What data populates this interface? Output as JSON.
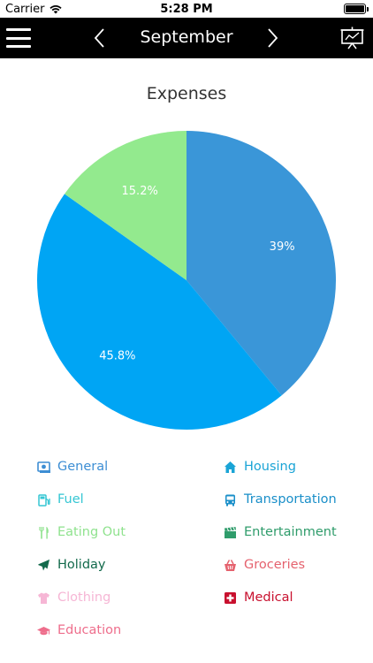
{
  "status_bar": {
    "carrier": "Carrier",
    "time": "5:28 PM"
  },
  "nav": {
    "title": "September"
  },
  "chart_data": {
    "type": "pie",
    "title": "Expenses",
    "slices": [
      {
        "label": "39%",
        "value": 39,
        "color": "#3a96d8"
      },
      {
        "label": "45.8%",
        "value": 45.8,
        "color": "#00a5f4"
      },
      {
        "label": "15.2%",
        "value": 15.2,
        "color": "#93ea8e"
      }
    ]
  },
  "legend": [
    {
      "label": "General",
      "color": "#3d8ed4",
      "icon": "money-icon"
    },
    {
      "label": "Housing",
      "color": "#1aa4d6",
      "icon": "house-icon"
    },
    {
      "label": "Fuel",
      "color": "#35c6d3",
      "icon": "fuel-icon"
    },
    {
      "label": "Transportation",
      "color": "#1a8fc9",
      "icon": "bus-icon"
    },
    {
      "label": "Eating Out",
      "color": "#8fe28e",
      "icon": "fork-knife-icon"
    },
    {
      "label": "Entertainment",
      "color": "#2f9c6b",
      "icon": "clapperboard-icon"
    },
    {
      "label": "Holiday",
      "color": "#136a4c",
      "icon": "airplane-icon"
    },
    {
      "label": "Groceries",
      "color": "#e5626e",
      "icon": "basket-icon"
    },
    {
      "label": "Clothing",
      "color": "#f6b6d5",
      "icon": "tshirt-icon"
    },
    {
      "label": "Medical",
      "color": "#c8102e",
      "icon": "medical-cross-icon"
    },
    {
      "label": "Education",
      "color": "#ee6e8c",
      "icon": "graduation-cap-icon"
    }
  ]
}
